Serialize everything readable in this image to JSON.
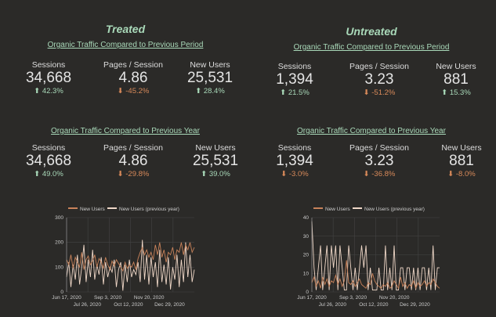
{
  "colors": {
    "up": "#a9d9b9",
    "down": "#d98a5a",
    "series_current": "#c8825a",
    "series_previous": "#f0d8c8"
  },
  "panels": [
    {
      "title": "Treated",
      "sections": [
        {
          "subtitle": "Organic Traffic Compared to Previous Period",
          "metrics": [
            {
              "label": "Sessions",
              "value": "34,668",
              "change": "42.3%",
              "direction": "up"
            },
            {
              "label": "Pages / Session",
              "value": "4.86",
              "change": "-45.2%",
              "direction": "down"
            },
            {
              "label": "New Users",
              "value": "25,531",
              "change": "28.4%",
              "direction": "up"
            }
          ]
        },
        {
          "subtitle": "Organic Traffic Compared to Previous Year",
          "metrics": [
            {
              "label": "Sessions",
              "value": "34,668",
              "change": "49.0%",
              "direction": "up"
            },
            {
              "label": "Pages / Session",
              "value": "4.86",
              "change": "-29.8%",
              "direction": "down"
            },
            {
              "label": "New Users",
              "value": "25,531",
              "change": "39.0%",
              "direction": "up"
            }
          ]
        }
      ]
    },
    {
      "title": "Untreated",
      "sections": [
        {
          "subtitle": "Organic Traffic Compared to Previous Period",
          "metrics": [
            {
              "label": "Sessions",
              "value": "1,394",
              "change": "21.5%",
              "direction": "up"
            },
            {
              "label": "Pages / Session",
              "value": "3.23",
              "change": "-51.2%",
              "direction": "down"
            },
            {
              "label": "New Users",
              "value": "881",
              "change": "15.3%",
              "direction": "up"
            }
          ]
        },
        {
          "subtitle": "Organic Traffic Compared to Previous Year",
          "metrics": [
            {
              "label": "Sessions",
              "value": "1,394",
              "change": "-3.0%",
              "direction": "down"
            },
            {
              "label": "Pages / Session",
              "value": "3.23",
              "change": "-36.8%",
              "direction": "down"
            },
            {
              "label": "New Users",
              "value": "881",
              "change": "-8.0%",
              "direction": "down"
            }
          ]
        }
      ]
    }
  ],
  "chart_data": [
    {
      "type": "line",
      "legend": "top",
      "grid": true,
      "x_ticks": [
        "Jun 17, 2020",
        "Jul 26, 2020",
        "Sep 3, 2020",
        "Oct 12, 2020",
        "Nov 20, 2020",
        "Dec 29, 2020"
      ],
      "ylim": [
        0,
        300
      ],
      "y_ticks": [
        0,
        100,
        200,
        300
      ],
      "series": [
        {
          "name": "New Users",
          "values": [
            130,
            110,
            150,
            95,
            140,
            120,
            100,
            160,
            90,
            130,
            145,
            110,
            125,
            150,
            100,
            135,
            120,
            95,
            140,
            110,
            90,
            125,
            105,
            130,
            115,
            100,
            85,
            120,
            95,
            110,
            100,
            120,
            90,
            135,
            160,
            180,
            150,
            170,
            140,
            160,
            130,
            190,
            150,
            200,
            140,
            170,
            120,
            160,
            150,
            180,
            130,
            170,
            160,
            200,
            150,
            190,
            170,
            200,
            160,
            180
          ]
        },
        {
          "name": "New Users (previous year)",
          "values": [
            60,
            120,
            20,
            110,
            50,
            150,
            30,
            100,
            190,
            40,
            130,
            60,
            170,
            50,
            110,
            70,
            140,
            30,
            120,
            60,
            100,
            80,
            130,
            20,
            90,
            120,
            5,
            110,
            40,
            130,
            60,
            90,
            70,
            120,
            40,
            210,
            50,
            150,
            30,
            140,
            60,
            120,
            20,
            170,
            40,
            110,
            30,
            140,
            10,
            100,
            50,
            150,
            20,
            130,
            40,
            200,
            60,
            150,
            40,
            90
          ]
        }
      ]
    },
    {
      "type": "line",
      "legend": "top",
      "grid": true,
      "x_ticks": [
        "Jun 17, 2020",
        "Jul 26, 2020",
        "Sep 3, 2020",
        "Oct 12, 2020",
        "Nov 20, 2020",
        "Dec 29, 2020"
      ],
      "ylim": [
        0,
        40
      ],
      "y_ticks": [
        0,
        10,
        20,
        30,
        40
      ],
      "series": [
        {
          "name": "New Users",
          "values": [
            5,
            8,
            3,
            6,
            2,
            8,
            4,
            7,
            3,
            6,
            5,
            9,
            4,
            7,
            3,
            6,
            17,
            5,
            4,
            6,
            3,
            5,
            7,
            4,
            3,
            2,
            5,
            4,
            10,
            6,
            4,
            3,
            2,
            4,
            3,
            5,
            2,
            3,
            6,
            4,
            2,
            8,
            3,
            5,
            2,
            4,
            3,
            6,
            2,
            5,
            3,
            4,
            6,
            3,
            5,
            4,
            7,
            5,
            3,
            2
          ]
        },
        {
          "name": "New Users (previous year)",
          "values": [
            38,
            13,
            1,
            13,
            25,
            1,
            13,
            25,
            1,
            25,
            13,
            25,
            1,
            25,
            13,
            1,
            1,
            25,
            13,
            1,
            13,
            1,
            13,
            25,
            13,
            25,
            1,
            13,
            1,
            1,
            1,
            13,
            1,
            1,
            25,
            1,
            13,
            1,
            25,
            1,
            1,
            13,
            13,
            1,
            13,
            13,
            1,
            13,
            1,
            13,
            1,
            13,
            13,
            1,
            13,
            1,
            25,
            1,
            13,
            13
          ]
        }
      ]
    }
  ]
}
